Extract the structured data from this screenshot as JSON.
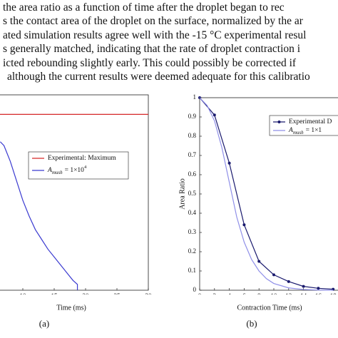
{
  "body": {
    "lines": [
      "the area ratio as a function of time after the droplet began to rec",
      "s the contact area of the droplet on the surface, normalized by the ar",
      "ated simulation results agree well with the -15 °C experimental resul",
      "s generally matched, indicating that the rate of droplet contraction i",
      "icted rebounding slightly early.  This could possibly be corrected if",
      "although the current results were deemed adequate for this calibratio"
    ]
  },
  "chart_data": [
    {
      "type": "line",
      "caption": "(a)",
      "x_label": "Time (ms)",
      "xlim": [
        0,
        30
      ],
      "xticks": [
        10,
        15,
        20,
        25,
        30
      ],
      "ylim": [
        0,
        1
      ],
      "series": [
        {
          "name_parts": [
            "Experimental: Maximum"
          ],
          "color": "#d62728",
          "marker": false,
          "x": [
            0,
            30
          ],
          "values": [
            0.9,
            0.9
          ]
        },
        {
          "name_parts": [
            "A",
            "mush",
            "= 1×10",
            "4"
          ],
          "color": "#3a3ad0",
          "marker": false,
          "x": [
            6.4,
            7,
            8,
            9,
            10,
            11,
            12,
            13,
            14,
            15,
            16,
            17,
            18,
            18.7,
            18.7
          ],
          "values": [
            0.76,
            0.74,
            0.66,
            0.56,
            0.46,
            0.38,
            0.31,
            0.26,
            0.21,
            0.17,
            0.13,
            0.09,
            0.05,
            0.03,
            0
          ]
        }
      ]
    },
    {
      "type": "line",
      "caption": "(b)",
      "x_label": "Contraction Time (ms)",
      "y_label": "Area Ratio",
      "xlim": [
        0,
        20
      ],
      "xticks": [
        0,
        2,
        4,
        6,
        8,
        10,
        12,
        14,
        16,
        18
      ],
      "ylim": [
        0,
        1
      ],
      "yticks": [
        0,
        0.1,
        0.2,
        0.3,
        0.4,
        0.5,
        0.6,
        0.7,
        0.8,
        0.9,
        1
      ],
      "series": [
        {
          "name_parts": [
            "Experimental D"
          ],
          "color": "#1a1a6e",
          "marker": true,
          "x": [
            0,
            2,
            4,
            6,
            8,
            10,
            12,
            14,
            16,
            18
          ],
          "values": [
            1,
            0.91,
            0.66,
            0.34,
            0.15,
            0.08,
            0.045,
            0.02,
            0.01,
            0.005
          ]
        },
        {
          "name_parts": [
            "A",
            "mush",
            "= 1×1"
          ],
          "color": "#8f8fe8",
          "marker": false,
          "x": [
            0,
            1,
            2,
            3,
            4,
            5,
            6,
            7,
            8,
            9,
            10,
            12,
            14,
            16,
            18
          ],
          "values": [
            1,
            0.96,
            0.88,
            0.74,
            0.56,
            0.38,
            0.25,
            0.16,
            0.1,
            0.06,
            0.035,
            0.012,
            0.004,
            0.001,
            0
          ]
        }
      ]
    }
  ]
}
